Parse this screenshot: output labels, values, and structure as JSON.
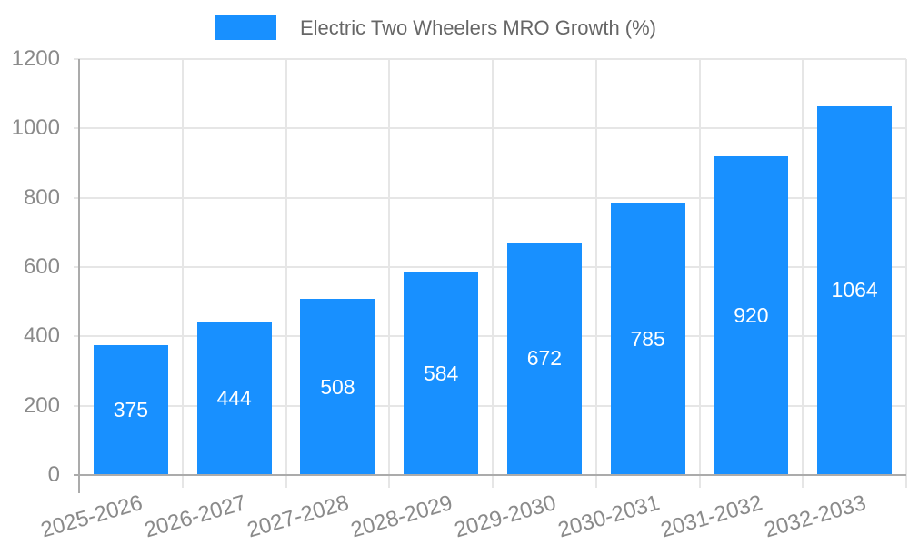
{
  "legend": {
    "label": "Electric Two Wheelers MRO Growth (%)",
    "swatch_color": "#1890FF"
  },
  "chart_data": {
    "type": "bar",
    "title": "Electric Two Wheelers MRO Growth (%)",
    "categories": [
      "2025-2026",
      "2026-2027",
      "2027-2028",
      "2028-2029",
      "2029-2030",
      "2030-2031",
      "2031-2032",
      "2032-2033"
    ],
    "values": [
      375,
      444,
      508,
      584,
      672,
      785,
      920,
      1064
    ],
    "value_labels": [
      "375",
      "444",
      "508",
      "584",
      "672",
      "785",
      "920",
      "1064"
    ],
    "xlabel": "",
    "ylabel": "",
    "ylim": [
      0,
      1200
    ],
    "yticks": [
      0,
      200,
      400,
      600,
      800,
      1000,
      1200
    ],
    "grid": true,
    "legend_position": "top",
    "bar_color": "#1890FF",
    "value_label_color": "#FFFFFF"
  }
}
